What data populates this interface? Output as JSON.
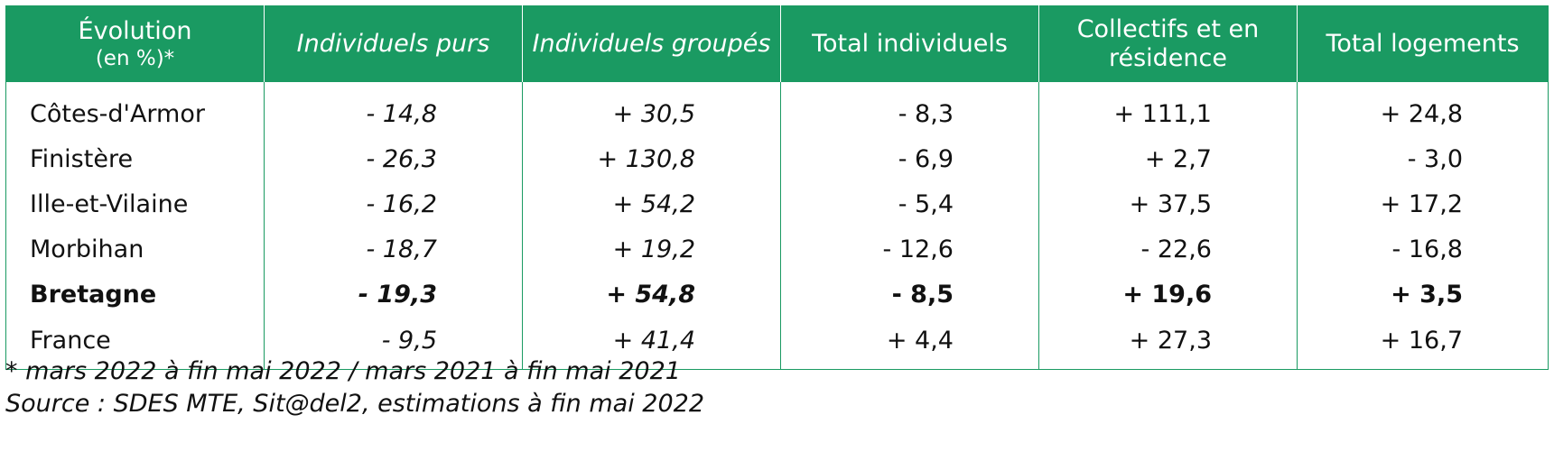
{
  "table": {
    "headers": [
      {
        "line1": "Évolution",
        "line2": "(en %)*"
      },
      {
        "text": "Individuels purs"
      },
      {
        "text": "Individuels groupés"
      },
      {
        "text": "Total individuels"
      },
      {
        "text": "Collectifs et en résidence"
      },
      {
        "text": "Total logements"
      }
    ],
    "rows": [
      {
        "label": "Côtes-d'Armor",
        "values": [
          "- 14,8",
          "+ 30,5",
          "- 8,3",
          "+ 111,1",
          "+ 24,8"
        ]
      },
      {
        "label": "Finistère",
        "values": [
          "- 26,3",
          "+ 130,8",
          "- 6,9",
          "+ 2,7",
          "- 3,0"
        ]
      },
      {
        "label": "Ille-et-Vilaine",
        "values": [
          "- 16,2",
          "+ 54,2",
          "- 5,4",
          "+ 37,5",
          "+ 17,2"
        ]
      },
      {
        "label": "Morbihan",
        "values": [
          "- 18,7",
          "+ 19,2",
          "- 12,6",
          "- 22,6",
          "- 16,8"
        ]
      },
      {
        "label": "Bretagne",
        "values": [
          "- 19,3",
          "+ 54,8",
          "- 8,5",
          "+ 19,6",
          "+ 3,5"
        ]
      },
      {
        "label": "France",
        "values": [
          "- 9,5",
          "+ 41,4",
          "+ 4,4",
          "+ 27,3",
          "+ 16,7"
        ]
      }
    ]
  },
  "notes": {
    "footnote": "* mars 2022 à fin mai 2022 / mars 2021 à fin mai 2021",
    "source": "Source : SDES MTE, Sit@del2, estimations à fin mai 2022"
  },
  "colors": {
    "header_bg": "#1a9a62",
    "header_text": "#ffffff",
    "border": "#1a9a62"
  }
}
